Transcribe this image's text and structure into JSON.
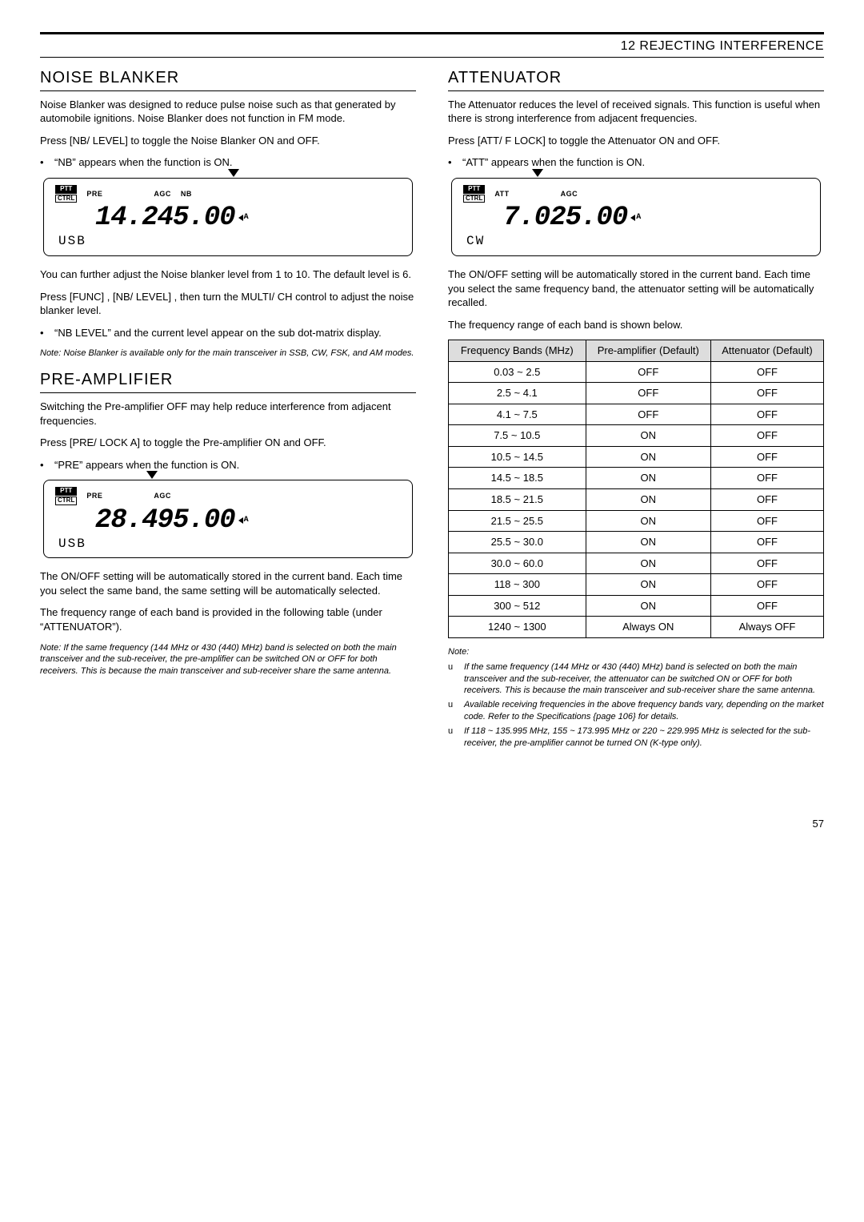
{
  "chapter": "12  REJECTING INTERFERENCE",
  "left": {
    "noise_blanker": {
      "title": "NOISE BLANKER",
      "p1": "Noise Blanker was designed to reduce pulse noise such as that generated by automobile ignitions.  Noise Blanker does not function in FM mode.",
      "p2": "Press [NB/ LEVEL]  to toggle the Noise Blanker ON and OFF.",
      "b1": "“NB” appears when the function is ON.",
      "lcd": {
        "ptt": "PTT",
        "ctrl": "CTRL",
        "pre": "PRE",
        "agc": "AGC",
        "nb": "NB",
        "freq": "14.245.00",
        "suffix": "A",
        "mode": "USB"
      },
      "p3": "You can further adjust the Noise blanker level from 1 to 10.  The default level is 6.",
      "p4": "Press [FUNC] , [NB/ LEVEL] , then turn the MULTI/ CH control to adjust the noise blanker level.",
      "b2": "“NB LEVEL” and the current level appear on the sub dot-matrix display.",
      "note": "Note:  Noise Blanker is available only for the main transceiver in SSB, CW, FSK, and AM modes."
    },
    "pre_amp": {
      "title": "PRE-AMPLIFIER",
      "p1": "Switching the Pre-amplifier OFF may help reduce interference from adjacent frequencies.",
      "p2": "Press [PRE/ LOCK A]  to toggle the Pre-amplifier ON and OFF.",
      "b1": "“PRE” appears when the function is ON.",
      "lcd": {
        "ptt": "PTT",
        "ctrl": "CTRL",
        "pre": "PRE",
        "agc": "AGC",
        "freq": "28.495.00",
        "suffix": "A",
        "mode": "USB"
      },
      "p3": "The ON/OFF setting will be automatically stored in the current band.  Each time you select the same band, the same setting will be automatically selected.",
      "p4": "The frequency range of each band is provided in the following table (under “ATTENUATOR”).",
      "note": "Note:  If  the same frequency (144 MHz or 430 (440) MHz) band is selected on both the main transceiver and the sub-receiver, the pre-amplifier can be switched ON or OFF for both receivers.  This is because the main transceiver and sub-receiver share the same antenna."
    }
  },
  "right": {
    "attenuator": {
      "title": "ATTENUATOR",
      "p1": "The Attenuator reduces the level of received signals.  This function is useful when there is strong interference from adjacent frequencies.",
      "p2": "Press [ATT/ F LOCK]  to toggle the Attenuator ON and OFF.",
      "b1": "“ATT” appears when the function is ON.",
      "lcd": {
        "ptt": "PTT",
        "ctrl": "CTRL",
        "att": "ATT",
        "agc": "AGC",
        "freq": "7.025.00",
        "suffix": "A",
        "mode": "CW"
      },
      "p3": "The ON/OFF setting will be automatically stored in the current band.  Each time you select the same frequency band, the attenuator setting will be automatically recalled.",
      "p4": "The frequency range of each band is shown below.",
      "table": {
        "h1": "Frequency Bands (MHz)",
        "h2": "Pre-amplifier (Default)",
        "h3": "Attenuator (Default)",
        "rows": [
          [
            "0.03 ~ 2.5",
            "OFF",
            "OFF"
          ],
          [
            "2.5 ~ 4.1",
            "OFF",
            "OFF"
          ],
          [
            "4.1 ~ 7.5",
            "OFF",
            "OFF"
          ],
          [
            "7.5 ~ 10.5",
            "ON",
            "OFF"
          ],
          [
            "10.5 ~ 14.5",
            "ON",
            "OFF"
          ],
          [
            "14.5 ~ 18.5",
            "ON",
            "OFF"
          ],
          [
            "18.5 ~ 21.5",
            "ON",
            "OFF"
          ],
          [
            "21.5 ~ 25.5",
            "ON",
            "OFF"
          ],
          [
            "25.5 ~ 30.0",
            "ON",
            "OFF"
          ],
          [
            "30.0 ~ 60.0",
            "ON",
            "OFF"
          ],
          [
            "118 ~ 300",
            "ON",
            "OFF"
          ],
          [
            "300 ~ 512",
            "ON",
            "OFF"
          ],
          [
            "1240 ~ 1300",
            "Always ON",
            "Always OFF"
          ]
        ]
      },
      "note_label": "Note:",
      "notes": [
        "If the same frequency (144 MHz or 430 (440) MHz) band is selected on both the main transceiver and the sub-receiver, the attenuator can be switched ON or OFF for both receivers.  This is because the main transceiver and sub-receiver share the same antenna.",
        "Available receiving frequencies in the above frequency bands vary, depending on the market code.  Refer to the Specifications {page 106} for details.",
        "If 118 ~ 135.995 MHz, 155 ~ 173.995 MHz or 220 ~ 229.995 MHz is selected for the sub-receiver, the pre-amplifier cannot be turned ON (K-type only)."
      ]
    }
  },
  "page_number": "57"
}
